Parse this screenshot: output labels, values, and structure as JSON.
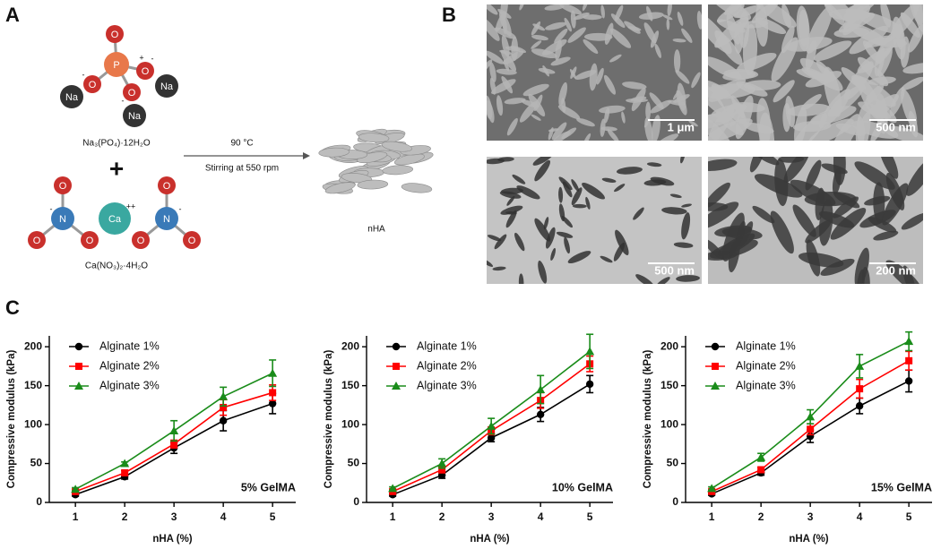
{
  "panel_labels": [
    "A",
    "B",
    "C"
  ],
  "schematic": {
    "reactant_1": "Na₃(PO₄)·12H₂O",
    "plus": "+",
    "reactant_2": "Ca(NO₃)₂·4H₂O",
    "condition_1": "90 °C",
    "condition_2": "Stirring at 550 rpm",
    "product": "nHA",
    "atoms": [
      "P",
      "O",
      "O",
      "O",
      "O",
      "Na",
      "Na",
      "Na",
      "N",
      "O",
      "O",
      "O",
      "Ca",
      "N",
      "O",
      "O",
      "O"
    ],
    "charges": [
      "-",
      "-",
      "-",
      "+",
      "++",
      "-",
      "-"
    ]
  },
  "micrographs": {
    "scale_bars": [
      "1 μm",
      "500 nm",
      "500 nm",
      "200 nm"
    ]
  },
  "chart_data": [
    {
      "type": "line",
      "annotation": "5% GelMA",
      "xlabel": "nHA (%)",
      "ylabel": "Compressive modulus (kPa)",
      "x": [
        1,
        2,
        3,
        4,
        5
      ],
      "xlim": [
        0.47,
        5.47
      ],
      "xticks": [
        1,
        2,
        3,
        4,
        5
      ],
      "ylim": [
        0,
        214
      ],
      "yticks": [
        0,
        50,
        100,
        150,
        200
      ],
      "legend": "upper left",
      "series": [
        {
          "name": "Alginate 1%",
          "color": "#000000",
          "marker": "circle",
          "values": [
            10,
            33,
            70,
            105,
            127
          ],
          "errors": [
            2,
            3,
            7,
            13,
            13
          ]
        },
        {
          "name": "Alginate 2%",
          "color": "#ff0000",
          "marker": "square",
          "values": [
            14,
            38,
            75,
            122,
            141
          ],
          "errors": [
            2,
            3,
            5,
            10,
            10
          ]
        },
        {
          "name": "Alginate 3%",
          "color": "#1a8c1a",
          "marker": "triangle",
          "values": [
            17,
            50,
            92,
            136,
            166
          ],
          "errors": [
            2,
            2,
            13,
            12,
            17
          ]
        }
      ]
    },
    {
      "type": "line",
      "annotation": "10% GelMA",
      "xlabel": "nHA (%)",
      "ylabel": "Compressive modulus (kPa)",
      "x": [
        1,
        2,
        3,
        4,
        5
      ],
      "xlim": [
        0.47,
        5.47
      ],
      "xticks": [
        1,
        2,
        3,
        4,
        5
      ],
      "ylim": [
        0,
        214
      ],
      "yticks": [
        0,
        50,
        100,
        150,
        200
      ],
      "legend": "upper left",
      "series": [
        {
          "name": "Alginate 1%",
          "color": "#000000",
          "marker": "circle",
          "values": [
            10,
            35,
            83,
            113,
            152
          ],
          "errors": [
            2,
            4,
            5,
            9,
            11
          ]
        },
        {
          "name": "Alginate 2%",
          "color": "#ff0000",
          "marker": "square",
          "values": [
            14,
            42,
            92,
            131,
            178
          ],
          "errors": [
            2,
            4,
            5,
            10,
            10
          ]
        },
        {
          "name": "Alginate 3%",
          "color": "#1a8c1a",
          "marker": "triangle",
          "values": [
            18,
            50,
            98,
            145,
            194
          ],
          "errors": [
            2,
            6,
            10,
            18,
            22
          ]
        }
      ]
    },
    {
      "type": "line",
      "annotation": "15% GelMA",
      "xlabel": "nHA (%)",
      "ylabel": "Compressive modulus (kPa)",
      "x": [
        1,
        2,
        3,
        4,
        5
      ],
      "xlim": [
        0.47,
        5.47
      ],
      "xticks": [
        1,
        2,
        3,
        4,
        5
      ],
      "ylim": [
        0,
        214
      ],
      "yticks": [
        0,
        50,
        100,
        150,
        200
      ],
      "legend": "upper left",
      "series": [
        {
          "name": "Alginate 1%",
          "color": "#000000",
          "marker": "circle",
          "values": [
            11,
            38,
            85,
            124,
            156
          ],
          "errors": [
            2,
            3,
            8,
            10,
            14
          ]
        },
        {
          "name": "Alginate 2%",
          "color": "#ff0000",
          "marker": "square",
          "values": [
            14,
            42,
            94,
            146,
            182
          ],
          "errors": [
            2,
            3,
            7,
            12,
            12
          ]
        },
        {
          "name": "Alginate 3%",
          "color": "#1a8c1a",
          "marker": "triangle",
          "values": [
            18,
            58,
            110,
            175,
            207
          ],
          "errors": [
            2,
            5,
            9,
            15,
            12
          ]
        }
      ]
    }
  ]
}
